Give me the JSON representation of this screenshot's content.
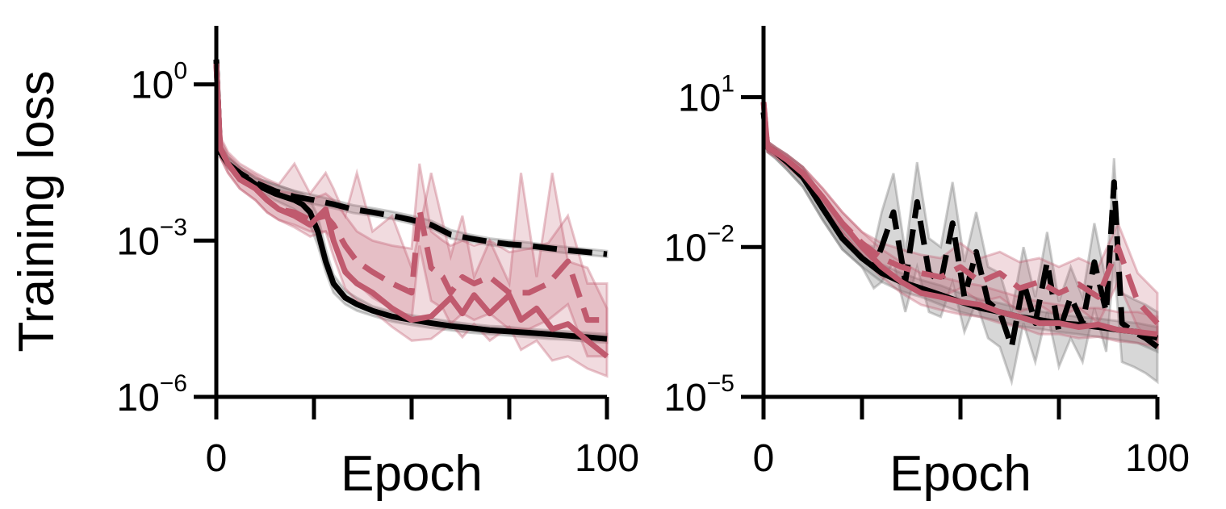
{
  "ylabel": "Training loss",
  "colors": {
    "black": "#000000",
    "red": "#c05a6e",
    "red_band": "#c05a6e",
    "grey_band": "#6f6f6f"
  },
  "chart_data": [
    {
      "type": "line",
      "xlabel": "Epoch",
      "ylabel": "Training loss",
      "yscale": "log",
      "xlim": [
        0,
        100
      ],
      "ylim": [
        1e-06,
        10
      ],
      "x_ticks": [
        0,
        25,
        50,
        75,
        100
      ],
      "x_tick_labels": [
        "0",
        "",
        "",
        "",
        "100"
      ],
      "y_ticks": [
        1e-06,
        0.001,
        1
      ],
      "y_tick_labels": [
        {
          "base": "10",
          "exp": "−6"
        },
        {
          "base": "10",
          "exp": "−3"
        },
        {
          "base": "10",
          "exp": "0"
        }
      ],
      "series": [
        {
          "color": "black",
          "dash": "solid",
          "band_color": "grey_band",
          "x": [
            0,
            1,
            3,
            6,
            10,
            15,
            20,
            22,
            24,
            26,
            28,
            30,
            33,
            36,
            40,
            45,
            50,
            55,
            60,
            65,
            70,
            75,
            80,
            85,
            90,
            95,
            100
          ],
          "y": [
            3.0,
            0.05,
            0.03,
            0.02,
            0.012,
            0.008,
            0.006,
            0.005,
            0.0035,
            0.0015,
            0.0004,
            0.00015,
            8e-05,
            6e-05,
            4.5e-05,
            3.5e-05,
            3e-05,
            2.6e-05,
            2.3e-05,
            2.1e-05,
            1.9e-05,
            1.8e-05,
            1.7e-05,
            1.6e-05,
            1.5e-05,
            1.4e-05,
            1.3e-05
          ],
          "band_lower": [
            2.5,
            0.04,
            0.025,
            0.016,
            0.01,
            0.006,
            0.004,
            0.003,
            0.002,
            0.0008,
            0.00025,
            0.0001,
            6e-05,
            4.5e-05,
            3.6e-05,
            2.8e-05,
            2.4e-05,
            2.1e-05,
            1.9e-05,
            1.7e-05,
            1.6e-05,
            1.5e-05,
            1.4e-05,
            1.3e-05,
            1.25e-05,
            1.15e-05,
            1.1e-05
          ],
          "band_upper": [
            3.5,
            0.07,
            0.04,
            0.026,
            0.016,
            0.012,
            0.009,
            0.008,
            0.006,
            0.003,
            0.0007,
            0.00022,
            0.00011,
            8e-05,
            5.5e-05,
            4.3e-05,
            3.7e-05,
            3.2e-05,
            2.8e-05,
            2.5e-05,
            2.3e-05,
            2.2e-05,
            2e-05,
            1.9e-05,
            1.8e-05,
            1.7e-05,
            1.6e-05
          ]
        },
        {
          "color": "black",
          "dash": "dashed",
          "band_color": "grey_band",
          "x": [
            0,
            1,
            3,
            6,
            10,
            15,
            20,
            25,
            30,
            35,
            40,
            45,
            50,
            55,
            60,
            65,
            70,
            75,
            80,
            85,
            90,
            95,
            100
          ],
          "y": [
            3.0,
            0.05,
            0.03,
            0.02,
            0.013,
            0.009,
            0.007,
            0.006,
            0.005,
            0.004,
            0.0035,
            0.003,
            0.0025,
            0.002,
            0.0013,
            0.0011,
            0.00095,
            0.00085,
            0.0008,
            0.00072,
            0.00065,
            0.0006,
            0.00055
          ],
          "band_lower": [
            2.5,
            0.04,
            0.025,
            0.016,
            0.011,
            0.0075,
            0.006,
            0.005,
            0.0042,
            0.0034,
            0.003,
            0.0026,
            0.0021,
            0.0017,
            0.0011,
            0.00095,
            0.00082,
            0.00074,
            0.0007,
            0.00063,
            0.00057,
            0.00053,
            0.00049
          ],
          "band_upper": [
            3.5,
            0.07,
            0.04,
            0.026,
            0.016,
            0.012,
            0.009,
            0.0075,
            0.006,
            0.0048,
            0.0042,
            0.0036,
            0.003,
            0.0024,
            0.0016,
            0.0013,
            0.0011,
            0.001,
            0.00092,
            0.00082,
            0.00075,
            0.00069,
            0.00063
          ]
        },
        {
          "color": "red",
          "dash": "solid",
          "band_color": "red_band",
          "x": [
            0,
            1,
            3,
            6,
            10,
            13,
            16,
            20,
            24,
            28,
            30,
            33,
            36,
            40,
            45,
            50,
            55,
            60,
            63,
            66,
            70,
            75,
            78,
            82,
            86,
            90,
            95,
            100
          ],
          "y": [
            2.5,
            0.06,
            0.03,
            0.015,
            0.01,
            0.006,
            0.004,
            0.003,
            0.002,
            0.004,
            0.001,
            0.00025,
            0.00015,
            0.0001,
            5e-05,
            3e-05,
            3.5e-05,
            8e-05,
            4e-05,
            9e-05,
            4e-05,
            9e-05,
            3e-05,
            5e-05,
            2e-05,
            2.5e-05,
            1.2e-05,
            6e-06
          ],
          "band_lower": [
            2.0,
            0.04,
            0.02,
            0.01,
            0.006,
            0.0035,
            0.0025,
            0.0018,
            0.0012,
            0.0015,
            0.0005,
            0.00012,
            7e-05,
            4.5e-05,
            2.2e-05,
            1.2e-05,
            1.3e-05,
            2.5e-05,
            1.4e-05,
            2.5e-05,
            1.2e-05,
            2.2e-05,
            8e-06,
            1.2e-05,
            5e-06,
            6e-06,
            3.5e-06,
            2.5e-06
          ],
          "band_upper": [
            3.0,
            0.1,
            0.05,
            0.03,
            0.02,
            0.015,
            0.012,
            0.03,
            0.008,
            0.02,
            0.01,
            0.003,
            0.02,
            0.0015,
            0.003,
            0.0003,
            0.02,
            0.0005,
            0.003,
            0.0002,
            0.001,
            0.00015,
            0.02,
            0.0002,
            0.02,
            0.0004,
            0.0003,
            5e-05
          ]
        },
        {
          "color": "red",
          "dash": "dashed",
          "band_color": "red_band",
          "x": [
            0,
            1,
            3,
            6,
            10,
            13,
            16,
            20,
            24,
            28,
            30,
            33,
            36,
            40,
            45,
            50,
            52,
            55,
            58,
            60,
            63,
            66,
            70,
            75,
            80,
            85,
            90,
            95,
            100
          ],
          "y": [
            2.5,
            0.06,
            0.03,
            0.015,
            0.01,
            0.006,
            0.004,
            0.0035,
            0.0025,
            0.003,
            0.002,
            0.0008,
            0.0004,
            0.00025,
            0.00015,
            0.0001,
            0.004,
            0.0003,
            0.0002,
            0.0001,
            0.0002,
            0.00015,
            0.0002,
            0.0001,
            0.0001,
            0.00015,
            0.0004,
            3e-05,
            3e-05
          ],
          "band_lower": [
            2.0,
            0.04,
            0.02,
            0.01,
            0.006,
            0.0035,
            0.0025,
            0.002,
            0.0015,
            0.0015,
            0.001,
            0.0003,
            0.00015,
            8e-05,
            5e-05,
            3e-05,
            0.0008,
            7e-05,
            5e-05,
            2.5e-05,
            4e-05,
            3e-05,
            4e-05,
            2e-05,
            2e-05,
            3e-05,
            6e-05,
            6e-06,
            6e-06
          ],
          "band_upper": [
            3.0,
            0.09,
            0.045,
            0.025,
            0.018,
            0.012,
            0.009,
            0.008,
            0.006,
            0.008,
            0.006,
            0.003,
            0.0015,
            0.001,
            0.0008,
            0.0007,
            0.03,
            0.0015,
            0.001,
            0.0008,
            0.001,
            0.0008,
            0.001,
            0.0006,
            0.0007,
            0.0009,
            0.003,
            0.00015,
            0.00015
          ]
        }
      ]
    },
    {
      "type": "line",
      "xlabel": "Epoch",
      "ylabel": "",
      "yscale": "log",
      "xlim": [
        0,
        100
      ],
      "ylim": [
        1e-05,
        200
      ],
      "x_ticks": [
        0,
        25,
        50,
        75,
        100
      ],
      "x_tick_labels": [
        "0",
        "",
        "",
        "",
        "100"
      ],
      "y_ticks": [
        1e-05,
        0.01,
        10
      ],
      "y_tick_labels": [
        {
          "base": "10",
          "exp": "−5"
        },
        {
          "base": "10",
          "exp": "−2"
        },
        {
          "base": "10",
          "exp": "1"
        }
      ],
      "series": [
        {
          "color": "black",
          "dash": "solid",
          "band_color": "grey_band",
          "x": [
            0,
            1,
            3,
            6,
            10,
            15,
            20,
            25,
            30,
            35,
            40,
            45,
            50,
            55,
            60,
            65,
            70,
            75,
            80,
            85,
            90,
            95,
            100
          ],
          "y": [
            5.0,
            1.0,
            0.8,
            0.5,
            0.25,
            0.06,
            0.015,
            0.006,
            0.003,
            0.002,
            0.0015,
            0.0011,
            0.0008,
            0.0006,
            0.0005,
            0.0004,
            0.00035,
            0.0003,
            0.00028,
            0.00025,
            0.00022,
            0.0002,
            0.00015
          ],
          "band_lower": [
            4.0,
            0.8,
            0.6,
            0.35,
            0.16,
            0.035,
            0.009,
            0.004,
            0.002,
            0.0013,
            0.001,
            0.0007,
            0.0005,
            0.0004,
            0.00033,
            0.00026,
            0.00023,
            0.0002,
            0.00018,
            0.00016,
            0.00014,
            0.00012,
            8e-05
          ],
          "band_upper": [
            6.0,
            1.3,
            1.0,
            0.7,
            0.4,
            0.1,
            0.025,
            0.01,
            0.0045,
            0.003,
            0.0022,
            0.0017,
            0.0012,
            0.0009,
            0.00075,
            0.0006,
            0.00052,
            0.00045,
            0.0004,
            0.00037,
            0.00033,
            0.0003,
            0.00025
          ]
        },
        {
          "color": "black",
          "dash": "dashed",
          "band_color": "grey_band",
          "x": [
            0,
            1,
            3,
            6,
            10,
            15,
            20,
            25,
            28,
            30,
            33,
            36,
            39,
            42,
            45,
            48,
            51,
            54,
            57,
            60,
            63,
            66,
            69,
            72,
            75,
            78,
            81,
            84,
            87,
            89,
            91,
            94,
            97,
            100
          ],
          "y": [
            5.0,
            1.0,
            0.8,
            0.5,
            0.25,
            0.06,
            0.015,
            0.006,
            0.004,
            0.01,
            0.05,
            0.002,
            0.08,
            0.003,
            0.002,
            0.03,
            0.001,
            0.008,
            0.0008,
            0.0005,
            0.0001,
            0.002,
            0.0003,
            0.005,
            0.0002,
            0.001,
            0.0003,
            0.005,
            0.0005,
            0.2,
            0.0003,
            0.0002,
            0.00015,
            0.0001
          ],
          "band_lower": [
            4.0,
            0.8,
            0.6,
            0.35,
            0.16,
            0.035,
            0.009,
            0.004,
            0.0015,
            0.002,
            0.005,
            0.0005,
            0.004,
            0.0005,
            0.0004,
            0.002,
            0.0002,
            0.0008,
            0.00015,
            0.0001,
            2e-05,
            0.0003,
            5e-05,
            0.0005,
            4e-05,
            0.00015,
            5e-05,
            0.0006,
            8e-05,
            0.005,
            5e-05,
            4e-05,
            3e-05,
            2e-05
          ],
          "band_upper": [
            6.0,
            1.3,
            1.0,
            0.7,
            0.4,
            0.1,
            0.025,
            0.012,
            0.01,
            0.05,
            0.3,
            0.008,
            0.5,
            0.015,
            0.01,
            0.2,
            0.005,
            0.05,
            0.004,
            0.003,
            0.0005,
            0.01,
            0.001,
            0.02,
            0.0008,
            0.004,
            0.001,
            0.03,
            0.002,
            0.6,
            0.0012,
            0.0009,
            0.0007,
            0.0005
          ]
        },
        {
          "color": "red",
          "dash": "solid",
          "band_color": "red_band",
          "x": [
            0,
            1,
            3,
            6,
            10,
            15,
            20,
            25,
            30,
            35,
            40,
            45,
            50,
            55,
            60,
            65,
            70,
            75,
            80,
            85,
            90,
            95,
            100
          ],
          "y": [
            8.0,
            1.0,
            0.8,
            0.55,
            0.3,
            0.1,
            0.03,
            0.01,
            0.004,
            0.002,
            0.0012,
            0.001,
            0.0008,
            0.0007,
            0.0005,
            0.0004,
            0.0003,
            0.0003,
            0.00025,
            0.00028,
            0.00022,
            0.0002,
            0.00018
          ],
          "band_lower": [
            6.0,
            0.8,
            0.65,
            0.42,
            0.22,
            0.07,
            0.02,
            0.006,
            0.0025,
            0.0012,
            0.0007,
            0.00055,
            0.00045,
            0.0004,
            0.0003,
            0.00025,
            0.00018,
            0.00018,
            0.00015,
            0.00016,
            0.00013,
            0.00012,
            0.0001
          ],
          "band_upper": [
            10.0,
            1.3,
            1.0,
            0.7,
            0.4,
            0.15,
            0.05,
            0.02,
            0.009,
            0.005,
            0.003,
            0.0025,
            0.002,
            0.0017,
            0.0013,
            0.001,
            0.0008,
            0.0007,
            0.0006,
            0.0006,
            0.0005,
            0.0005,
            0.0004
          ]
        },
        {
          "color": "red",
          "dash": "dashed",
          "band_color": "red_band",
          "x": [
            0,
            1,
            3,
            6,
            10,
            15,
            20,
            25,
            30,
            35,
            40,
            45,
            50,
            55,
            60,
            65,
            70,
            75,
            80,
            85,
            90,
            95,
            100
          ],
          "y": [
            8.0,
            1.0,
            0.8,
            0.55,
            0.3,
            0.1,
            0.03,
            0.012,
            0.006,
            0.004,
            0.003,
            0.0025,
            0.004,
            0.002,
            0.003,
            0.0015,
            0.002,
            0.0012,
            0.0018,
            0.001,
            0.01,
            0.0008,
            0.0003
          ],
          "band_lower": [
            6.0,
            0.8,
            0.65,
            0.42,
            0.22,
            0.07,
            0.02,
            0.007,
            0.003,
            0.0018,
            0.0013,
            0.001,
            0.0015,
            0.0008,
            0.001,
            0.0005,
            0.0007,
            0.0004,
            0.0006,
            0.0003,
            0.002,
            0.00025,
            0.0001
          ],
          "band_upper": [
            10.0,
            1.3,
            1.0,
            0.7,
            0.4,
            0.15,
            0.05,
            0.02,
            0.012,
            0.009,
            0.007,
            0.006,
            0.012,
            0.006,
            0.008,
            0.005,
            0.006,
            0.004,
            0.006,
            0.004,
            0.03,
            0.003,
            0.0012
          ]
        }
      ]
    }
  ]
}
